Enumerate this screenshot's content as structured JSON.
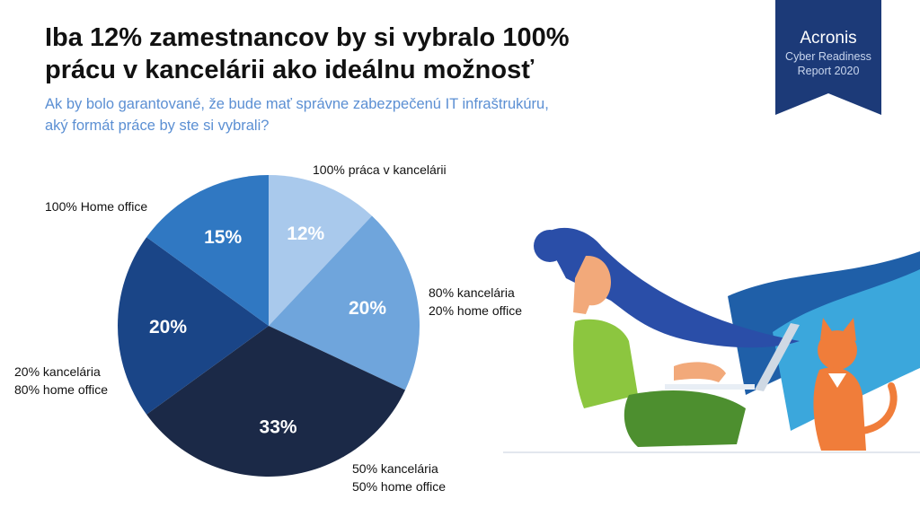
{
  "header": {
    "title_line1": "Iba 12% zamestnancov by si vybralo 100%",
    "title_line2": "prácu v kancelárii ako ideálnu možnosť",
    "subtitle_line1": "Ak by bolo garantované, že bude mať správne zabezpečenú IT infraštrukúru,",
    "subtitle_line2": "aký formát práce by ste si vybrali?"
  },
  "badge": {
    "brand": "Acronis",
    "line1": "Cyber Readiness",
    "line2": "Report 2020",
    "color": "#1c3a78"
  },
  "chart_data": {
    "type": "pie",
    "title": "Iba 12% zamestnancov by si vybralo 100% prácu v kancelárii ako ideálnu možnosť",
    "start_angle_deg": 0,
    "direction": "clockwise",
    "slices": [
      {
        "label_lines": [
          "100% práca v kancelárii"
        ],
        "value": 12,
        "value_label": "12%",
        "color": "#a9c9ec",
        "text_color": "#ffffff"
      },
      {
        "label_lines": [
          "80% kancelária",
          "20% home office"
        ],
        "value": 20,
        "value_label": "20%",
        "color": "#6fa5dc",
        "text_color": "#ffffff"
      },
      {
        "label_lines": [
          "50% kancelária",
          "50% home office"
        ],
        "value": 33,
        "value_label": "33%",
        "color": "#1b2947",
        "text_color": "#ffffff"
      },
      {
        "label_lines": [
          "20% kancelária",
          "80% home office"
        ],
        "value": 20,
        "value_label": "20%",
        "color": "#1a4587",
        "text_color": "#ffffff"
      },
      {
        "label_lines": [
          "100% Home office"
        ],
        "value": 15,
        "value_label": "15%",
        "color": "#3078c2",
        "text_color": "#ffffff"
      }
    ]
  },
  "illustration": {
    "icon": "woman-with-laptop-and-cat-illustration"
  }
}
